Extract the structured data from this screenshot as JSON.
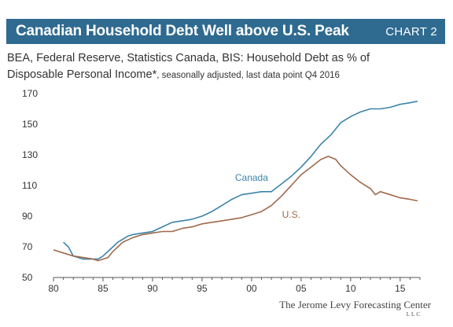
{
  "header": {
    "title": "Canadian Household Debt Well above U.S. Peak",
    "chart_label": "CHART 2"
  },
  "subtitle": {
    "line1": "BEA, Federal Reserve, Statistics Canada, BIS: Household Debt as % of",
    "line2_main": "Disposable Personal Income*",
    "line2_small": ", seasonally adjusted, last data point Q4 2016"
  },
  "source": {
    "name": "The Jerome Levy Forecasting Center",
    "suffix": "LLC"
  },
  "colors": {
    "title_bar": "#2f6a90",
    "canada": "#3b84a8",
    "us": "#a0694a"
  },
  "chart_data": {
    "type": "line",
    "title": "",
    "xlabel": "",
    "ylabel": "",
    "xlim": [
      1980,
      2017
    ],
    "ylim": [
      50,
      170
    ],
    "x_ticks": [
      1980,
      1985,
      1990,
      1995,
      2000,
      2005,
      2010,
      2015
    ],
    "x_tick_labels": [
      "80",
      "85",
      "90",
      "95",
      "00",
      "05",
      "10",
      "15"
    ],
    "y_ticks": [
      50,
      70,
      90,
      110,
      130,
      150,
      170
    ],
    "y_tick_labels": [
      "50",
      "70",
      "90",
      "110",
      "130",
      "150",
      "170"
    ],
    "grid": false,
    "series": [
      {
        "name": "Canada",
        "color": "#3b84a8",
        "points": [
          [
            1981.0,
            73
          ],
          [
            1981.5,
            70
          ],
          [
            1982.0,
            64
          ],
          [
            1982.5,
            63
          ],
          [
            1983.0,
            62
          ],
          [
            1983.5,
            62
          ],
          [
            1984.0,
            62
          ],
          [
            1984.5,
            62
          ],
          [
            1985.0,
            64
          ],
          [
            1985.5,
            67
          ],
          [
            1986.0,
            70
          ],
          [
            1986.5,
            73
          ],
          [
            1987.0,
            75
          ],
          [
            1987.5,
            77
          ],
          [
            1988.0,
            78
          ],
          [
            1989.0,
            79
          ],
          [
            1990.0,
            80
          ],
          [
            1991.0,
            83
          ],
          [
            1992.0,
            86
          ],
          [
            1993.0,
            87
          ],
          [
            1994.0,
            88
          ],
          [
            1995.0,
            90
          ],
          [
            1996.0,
            93
          ],
          [
            1997.0,
            97
          ],
          [
            1998.0,
            101
          ],
          [
            1999.0,
            104
          ],
          [
            2000.0,
            105
          ],
          [
            2001.0,
            106
          ],
          [
            2002.0,
            106
          ],
          [
            2003.0,
            111
          ],
          [
            2004.0,
            116
          ],
          [
            2005.0,
            122
          ],
          [
            2006.0,
            129
          ],
          [
            2007.0,
            137
          ],
          [
            2008.0,
            143
          ],
          [
            2009.0,
            151
          ],
          [
            2010.0,
            155
          ],
          [
            2011.0,
            158
          ],
          [
            2012.0,
            160
          ],
          [
            2013.0,
            160
          ],
          [
            2014.0,
            161
          ],
          [
            2015.0,
            163
          ],
          [
            2016.0,
            164
          ],
          [
            2016.75,
            165
          ]
        ]
      },
      {
        "name": "U.S.",
        "color": "#a0694a",
        "points": [
          [
            1980.0,
            68
          ],
          [
            1981.0,
            66
          ],
          [
            1982.0,
            64
          ],
          [
            1983.0,
            63
          ],
          [
            1984.0,
            62
          ],
          [
            1984.5,
            61
          ],
          [
            1985.0,
            62
          ],
          [
            1985.5,
            63
          ],
          [
            1986.0,
            67
          ],
          [
            1986.5,
            70
          ],
          [
            1987.0,
            73
          ],
          [
            1988.0,
            76
          ],
          [
            1989.0,
            78
          ],
          [
            1990.0,
            79
          ],
          [
            1991.0,
            80
          ],
          [
            1992.0,
            80
          ],
          [
            1993.0,
            82
          ],
          [
            1994.0,
            83
          ],
          [
            1995.0,
            85
          ],
          [
            1996.0,
            86
          ],
          [
            1997.0,
            87
          ],
          [
            1998.0,
            88
          ],
          [
            1999.0,
            89
          ],
          [
            2000.0,
            91
          ],
          [
            2001.0,
            93
          ],
          [
            2002.0,
            97
          ],
          [
            2003.0,
            103
          ],
          [
            2004.0,
            110
          ],
          [
            2005.0,
            117
          ],
          [
            2006.0,
            122
          ],
          [
            2007.0,
            127
          ],
          [
            2007.75,
            129
          ],
          [
            2008.5,
            127
          ],
          [
            2009.0,
            123
          ],
          [
            2010.0,
            117
          ],
          [
            2011.0,
            112
          ],
          [
            2012.0,
            108
          ],
          [
            2012.5,
            104
          ],
          [
            2013.0,
            106
          ],
          [
            2014.0,
            104
          ],
          [
            2015.0,
            102
          ],
          [
            2016.0,
            101
          ],
          [
            2016.75,
            100
          ]
        ]
      }
    ],
    "annotations": [
      {
        "text": "Canada",
        "series": "Canada",
        "x": 2000,
        "y": 113
      },
      {
        "text": "U.S.",
        "series": "U.S.",
        "x": 2004,
        "y": 89
      }
    ]
  }
}
